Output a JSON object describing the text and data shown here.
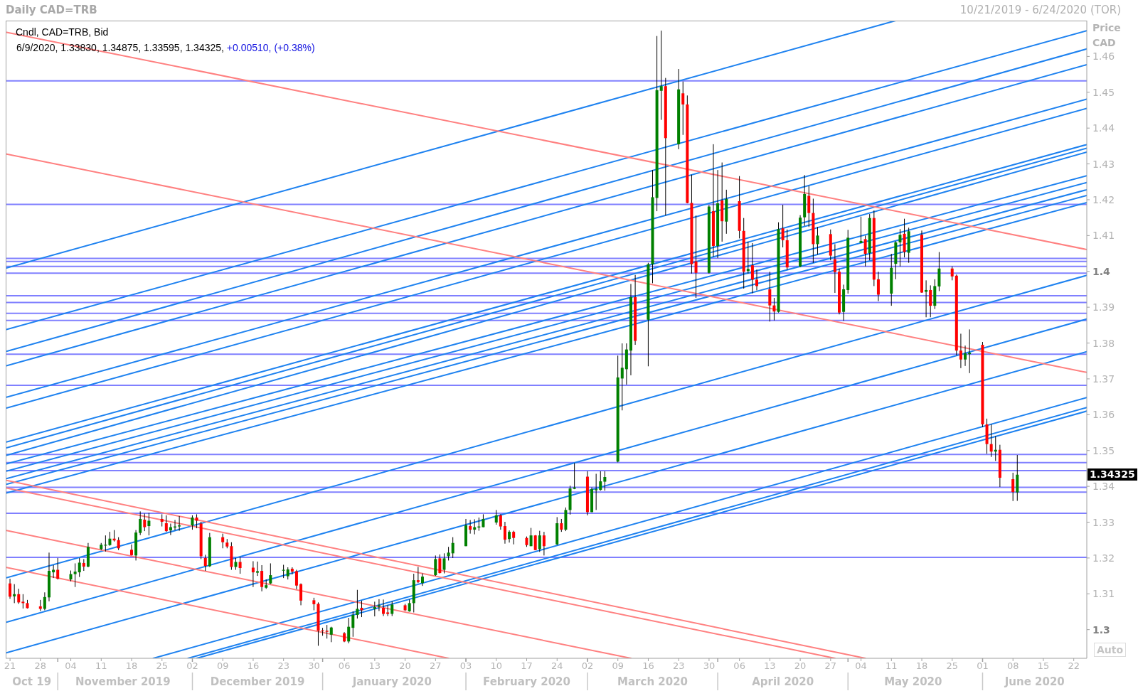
{
  "chart_data": {
    "type": "candlestick",
    "title": "Daily CAD=TRB",
    "subtitle": "10/21/2019 - 6/24/2020 (TOR)",
    "ylabel": "Price CAD",
    "annotations": [
      "Cndl, CAD=TRB, Bid",
      "6/9/2020, 1.33830, 1.34875, 1.33595, 1.34325,",
      "+0.00510, (+0.38%)",
      "1.34325",
      "Auto"
    ],
    "x": [
      "2019-10-21",
      "2019-10-22",
      "2019-10-23",
      "2019-10-24",
      "2019-10-25",
      "2019-10-28",
      "2019-10-29",
      "2019-10-30",
      "2019-10-31",
      "2019-11-01",
      "2019-11-04",
      "2019-11-05",
      "2019-11-06",
      "2019-11-07",
      "2019-11-08",
      "2019-11-11",
      "2019-11-12",
      "2019-11-13",
      "2019-11-14",
      "2019-11-15",
      "2019-11-18",
      "2019-11-19",
      "2019-11-20",
      "2019-11-21",
      "2019-11-22",
      "2019-11-25",
      "2019-11-26",
      "2019-11-27",
      "2019-11-28",
      "2019-11-29",
      "2019-12-02",
      "2019-12-03",
      "2019-12-04",
      "2019-12-05",
      "2019-12-06",
      "2019-12-09",
      "2019-12-10",
      "2019-12-11",
      "2019-12-12",
      "2019-12-13",
      "2019-12-16",
      "2019-12-17",
      "2019-12-18",
      "2019-12-19",
      "2019-12-20",
      "2019-12-23",
      "2019-12-24",
      "2019-12-25",
      "2019-12-26",
      "2019-12-27",
      "2019-12-30",
      "2019-12-31",
      "2020-01-01",
      "2020-01-02",
      "2020-01-03",
      "2020-01-06",
      "2020-01-07",
      "2020-01-08",
      "2020-01-09",
      "2020-01-10",
      "2020-01-13",
      "2020-01-14",
      "2020-01-15",
      "2020-01-16",
      "2020-01-17",
      "2020-01-20",
      "2020-01-21",
      "2020-01-22",
      "2020-01-23",
      "2020-01-24",
      "2020-01-27",
      "2020-01-28",
      "2020-01-29",
      "2020-01-30",
      "2020-01-31",
      "2020-02-03",
      "2020-02-04",
      "2020-02-05",
      "2020-02-06",
      "2020-02-07",
      "2020-02-10",
      "2020-02-11",
      "2020-02-12",
      "2020-02-13",
      "2020-02-14",
      "2020-02-17",
      "2020-02-18",
      "2020-02-19",
      "2020-02-20",
      "2020-02-21",
      "2020-02-24",
      "2020-02-25",
      "2020-02-26",
      "2020-02-27",
      "2020-02-28",
      "2020-03-02",
      "2020-03-03",
      "2020-03-04",
      "2020-03-05",
      "2020-03-06",
      "2020-03-09",
      "2020-03-10",
      "2020-03-11",
      "2020-03-12",
      "2020-03-13",
      "2020-03-16",
      "2020-03-17",
      "2020-03-18",
      "2020-03-19",
      "2020-03-20",
      "2020-03-23",
      "2020-03-24",
      "2020-03-25",
      "2020-03-26",
      "2020-03-27",
      "2020-03-30",
      "2020-03-31",
      "2020-04-01",
      "2020-04-02",
      "2020-04-03",
      "2020-04-06",
      "2020-04-07",
      "2020-04-08",
      "2020-04-09",
      "2020-04-10",
      "2020-04-13",
      "2020-04-14",
      "2020-04-15",
      "2020-04-16",
      "2020-04-17",
      "2020-04-20",
      "2020-04-21",
      "2020-04-22",
      "2020-04-23",
      "2020-04-24",
      "2020-04-27",
      "2020-04-28",
      "2020-04-29",
      "2020-04-30",
      "2020-05-01",
      "2020-05-04",
      "2020-05-05",
      "2020-05-06",
      "2020-05-07",
      "2020-05-08",
      "2020-05-11",
      "2020-05-12",
      "2020-05-13",
      "2020-05-14",
      "2020-05-15",
      "2020-05-18",
      "2020-05-19",
      "2020-05-20",
      "2020-05-21",
      "2020-05-22",
      "2020-05-25",
      "2020-05-26",
      "2020-05-27",
      "2020-05-28",
      "2020-05-29",
      "2020-06-01",
      "2020-06-02",
      "2020-06-03",
      "2020-06-04",
      "2020-06-05",
      "2020-06-08",
      "2020-06-09"
    ],
    "ohlc": [
      [
        1.3129,
        1.3142,
        1.3086,
        1.3092
      ],
      [
        1.3093,
        1.3127,
        1.3074,
        1.3099
      ],
      [
        1.3099,
        1.3114,
        1.3072,
        1.3076
      ],
      [
        1.3078,
        1.3099,
        1.3059,
        1.3074
      ],
      [
        1.3074,
        1.3083,
        1.3059,
        1.306
      ],
      [
        1.3065,
        1.3083,
        1.3052,
        1.3058
      ],
      [
        1.3058,
        1.3104,
        1.3054,
        1.3091
      ],
      [
        1.309,
        1.3215,
        1.3079,
        1.3164
      ],
      [
        1.316,
        1.318,
        1.3144,
        1.3167
      ],
      [
        1.3167,
        1.32,
        1.314,
        1.3142
      ],
      [
        1.314,
        1.3165,
        1.3135,
        1.3155
      ],
      [
        1.3155,
        1.3185,
        1.3119,
        1.3162
      ],
      [
        1.316,
        1.32,
        1.3147,
        1.3187
      ],
      [
        1.3186,
        1.3197,
        1.3164,
        1.3176
      ],
      [
        1.3176,
        1.3242,
        1.3174,
        1.3231
      ],
      [
        1.3225,
        1.3242,
        1.3222,
        1.3237
      ],
      [
        1.3236,
        1.3263,
        1.3218,
        1.3237
      ],
      [
        1.3236,
        1.3273,
        1.3234,
        1.3254
      ],
      [
        1.3254,
        1.3278,
        1.3246,
        1.3249
      ],
      [
        1.325,
        1.3258,
        1.3222,
        1.3227
      ],
      [
        1.3223,
        1.3238,
        1.3207,
        1.3208
      ],
      [
        1.3207,
        1.3278,
        1.3193,
        1.3271
      ],
      [
        1.327,
        1.333,
        1.3264,
        1.3309
      ],
      [
        1.3307,
        1.3324,
        1.3275,
        1.3286
      ],
      [
        1.3289,
        1.3326,
        1.3263,
        1.3304
      ],
      [
        1.3309,
        1.3322,
        1.3288,
        1.3301
      ],
      [
        1.3297,
        1.3319,
        1.3273,
        1.3275
      ],
      [
        1.3277,
        1.3296,
        1.3264,
        1.3286
      ],
      [
        1.3285,
        1.3306,
        1.3277,
        1.3288
      ],
      [
        1.3288,
        1.3317,
        1.3276,
        1.3291
      ],
      [
        1.3291,
        1.3319,
        1.3279,
        1.3313
      ],
      [
        1.3313,
        1.3322,
        1.3283,
        1.3304
      ],
      [
        1.3296,
        1.3301,
        1.3197,
        1.3205
      ],
      [
        1.32,
        1.3209,
        1.3164,
        1.3178
      ],
      [
        1.3177,
        1.327,
        1.3175,
        1.3258
      ],
      [
        1.3258,
        1.3268,
        1.3227,
        1.3244
      ],
      [
        1.3243,
        1.3253,
        1.3227,
        1.3232
      ],
      [
        1.3233,
        1.3244,
        1.3167,
        1.3175
      ],
      [
        1.3175,
        1.32,
        1.3167,
        1.3189
      ],
      [
        1.3189,
        1.3203,
        1.3156,
        1.3172
      ],
      [
        1.3173,
        1.3191,
        1.3119,
        1.316
      ],
      [
        1.3159,
        1.319,
        1.315,
        1.3163
      ],
      [
        1.3164,
        1.318,
        1.3107,
        1.3119
      ],
      [
        1.3117,
        1.314,
        1.3114,
        1.3124
      ],
      [
        1.3129,
        1.3185,
        1.3127,
        1.3152
      ],
      [
        1.3165,
        1.3181,
        1.3144,
        1.3167
      ],
      [
        1.3149,
        1.3174,
        1.314,
        1.3168
      ],
      [
        1.317,
        1.3174,
        1.3154,
        1.3162
      ],
      [
        1.3163,
        1.3167,
        1.3113,
        1.3123
      ],
      [
        1.3127,
        1.3129,
        1.3068,
        1.3081
      ],
      [
        1.3082,
        1.3089,
        1.3054,
        1.3071
      ],
      [
        1.3072,
        1.3076,
        1.2955,
        1.2997
      ],
      [
        1.2998,
        1.3005,
        1.2983,
        1.2996
      ],
      [
        1.2997,
        1.3013,
        1.2975,
        1.2994
      ],
      [
        1.2986,
        1.3008,
        1.2965,
        1.3006
      ],
      [
        1.299,
        1.2993,
        1.2965,
        1.2967
      ],
      [
        1.2967,
        1.3033,
        1.2962,
        1.3008
      ],
      [
        1.3005,
        1.3051,
        1.298,
        1.3041
      ],
      [
        1.3041,
        1.3111,
        1.3031,
        1.3058
      ],
      [
        1.3061,
        1.3081,
        1.3035,
        1.3054
      ],
      [
        1.3058,
        1.3078,
        1.3037,
        1.3063
      ],
      [
        1.3064,
        1.3085,
        1.3052,
        1.3068
      ],
      [
        1.3061,
        1.3084,
        1.3038,
        1.3044
      ],
      [
        1.3048,
        1.3068,
        1.3038,
        1.3044
      ],
      [
        1.3044,
        1.3079,
        1.3038,
        1.307
      ],
      [
        1.3068,
        1.3072,
        1.3052,
        1.3054
      ],
      [
        1.3051,
        1.3084,
        1.305,
        1.3074
      ],
      [
        1.3074,
        1.3156,
        1.3048,
        1.3138
      ],
      [
        1.3138,
        1.3175,
        1.313,
        1.3133
      ],
      [
        1.313,
        1.3157,
        1.3122,
        1.3148
      ],
      [
        1.3152,
        1.3207,
        1.315,
        1.3197
      ],
      [
        1.3199,
        1.321,
        1.3157,
        1.3158
      ],
      [
        1.3167,
        1.3213,
        1.3157,
        1.3199
      ],
      [
        1.3205,
        1.3231,
        1.3193,
        1.3215
      ],
      [
        1.3213,
        1.3258,
        1.32,
        1.3242
      ],
      [
        1.3233,
        1.3309,
        1.3233,
        1.3291
      ],
      [
        1.3289,
        1.3306,
        1.3268,
        1.3279
      ],
      [
        1.3279,
        1.3308,
        1.3266,
        1.3286
      ],
      [
        1.3285,
        1.3313,
        1.3276,
        1.3288
      ],
      [
        1.3286,
        1.3322,
        1.3286,
        1.3309
      ],
      [
        1.3299,
        1.3334,
        1.3293,
        1.3319
      ],
      [
        1.3319,
        1.3322,
        1.3279,
        1.3288
      ],
      [
        1.3289,
        1.3301,
        1.324,
        1.3251
      ],
      [
        1.3253,
        1.3277,
        1.3243,
        1.3273
      ],
      [
        1.3273,
        1.3276,
        1.3238,
        1.3256
      ],
      [
        1.3256,
        1.326,
        1.3231,
        1.3236
      ],
      [
        1.3233,
        1.3284,
        1.3233,
        1.3263
      ],
      [
        1.3263,
        1.3264,
        1.3222,
        1.3222
      ],
      [
        1.3225,
        1.3276,
        1.3217,
        1.3263
      ],
      [
        1.3263,
        1.3273,
        1.3207,
        1.3233
      ],
      [
        1.3238,
        1.3314,
        1.3236,
        1.3297
      ],
      [
        1.3297,
        1.3309,
        1.3273,
        1.3279
      ],
      [
        1.3279,
        1.3341,
        1.3275,
        1.3334
      ],
      [
        1.3334,
        1.3402,
        1.3321,
        1.3394
      ],
      [
        1.3393,
        1.3465,
        1.3392,
        1.3397
      ],
      [
        1.3427,
        1.3442,
        1.3319,
        1.3328
      ],
      [
        1.3328,
        1.3397,
        1.3328,
        1.3392
      ],
      [
        1.3389,
        1.3435,
        1.3334,
        1.3392
      ],
      [
        1.339,
        1.3442,
        1.3388,
        1.3414
      ],
      [
        1.3413,
        1.3442,
        1.3388,
        1.3426
      ],
      [
        1.3469,
        1.3765,
        1.3467,
        1.3704
      ],
      [
        1.3701,
        1.3799,
        1.3612,
        1.3731
      ],
      [
        1.3727,
        1.3799,
        1.3684,
        1.3782
      ],
      [
        1.3779,
        1.3965,
        1.371,
        1.3928
      ],
      [
        1.3928,
        1.399,
        1.3795,
        1.3806
      ],
      [
        1.3865,
        1.4024,
        1.3735,
        1.402
      ],
      [
        1.402,
        1.4283,
        1.3967,
        1.4207
      ],
      [
        1.4205,
        1.4657,
        1.4168,
        1.4506
      ],
      [
        1.4504,
        1.4672,
        1.4423,
        1.4517
      ],
      [
        1.4517,
        1.454,
        1.4156,
        1.4372
      ],
      [
        1.4355,
        1.4565,
        1.4341,
        1.4508
      ],
      [
        1.4497,
        1.453,
        1.4381,
        1.4466
      ],
      [
        1.4466,
        1.4491,
        1.419,
        1.4191
      ],
      [
        1.4191,
        1.427,
        1.3994,
        1.402
      ],
      [
        1.4028,
        1.4156,
        1.3926,
        1.3996
      ],
      [
        1.3996,
        1.4185,
        1.3994,
        1.4181
      ],
      [
        1.4168,
        1.4355,
        1.4041,
        1.4071
      ],
      [
        1.4071,
        1.4283,
        1.4037,
        1.419
      ],
      [
        1.4198,
        1.4304,
        1.4083,
        1.414
      ],
      [
        1.4139,
        1.4228,
        1.4105,
        1.4202
      ],
      [
        1.4196,
        1.4266,
        1.4092,
        1.4113
      ],
      [
        1.4113,
        1.4149,
        1.3952,
        1.3999
      ],
      [
        1.4001,
        1.4083,
        1.3994,
        1.4007
      ],
      [
        1.4017,
        1.4079,
        1.3939,
        1.3977
      ],
      [
        1.3977,
        1.4005,
        1.3947,
        1.3959
      ],
      [
        1.395,
        1.3999,
        1.386,
        1.3905
      ],
      [
        1.3905,
        1.3926,
        1.3863,
        1.3888
      ],
      [
        1.3887,
        1.4137,
        1.3885,
        1.4118
      ],
      [
        1.412,
        1.4186,
        1.4067,
        1.4087
      ],
      [
        1.4087,
        1.4117,
        1.4004,
        1.4011
      ],
      [
        1.4014,
        1.4157,
        1.4012,
        1.415
      ],
      [
        1.4151,
        1.4269,
        1.4127,
        1.4216
      ],
      [
        1.4211,
        1.4239,
        1.4124,
        1.4163
      ],
      [
        1.4163,
        1.4203,
        1.4024,
        1.4076
      ],
      [
        1.4076,
        1.4124,
        1.4047,
        1.41
      ],
      [
        1.4104,
        1.4117,
        1.4031,
        1.4044
      ],
      [
        1.4034,
        1.4076,
        1.394,
        1.3998
      ],
      [
        1.3999,
        1.4008,
        1.388,
        1.3885
      ],
      [
        1.3887,
        1.3963,
        1.3862,
        1.395
      ],
      [
        1.3948,
        1.4116,
        1.3938,
        1.4094
      ],
      [
        1.4079,
        1.4153,
        1.4079,
        1.4085
      ],
      [
        1.409,
        1.41,
        1.4014,
        1.4049
      ],
      [
        1.4051,
        1.416,
        1.4031,
        1.4149
      ],
      [
        1.4149,
        1.417,
        1.3959,
        1.3977
      ],
      [
        1.3978,
        1.3999,
        1.3917,
        1.3935
      ],
      [
        1.3938,
        1.4049,
        1.3904,
        1.401
      ],
      [
        1.4021,
        1.4084,
        1.3978,
        1.4081
      ],
      [
        1.4081,
        1.4118,
        1.4014,
        1.4102
      ],
      [
        1.4105,
        1.4147,
        1.4039,
        1.4054
      ],
      [
        1.4052,
        1.4122,
        1.4024,
        1.4112
      ],
      [
        1.4102,
        1.4114,
        1.394,
        1.3941
      ],
      [
        1.3943,
        1.3975,
        1.3872,
        1.3948
      ],
      [
        1.3948,
        1.3961,
        1.3872,
        1.3904
      ],
      [
        1.3904,
        1.3978,
        1.3895,
        1.3959
      ],
      [
        1.3958,
        1.4054,
        1.3945,
        1.4008
      ],
      [
        1.4008,
        1.4014,
        1.3975,
        1.3986
      ],
      [
        1.3988,
        1.3991,
        1.3766,
        1.3779
      ],
      [
        1.3779,
        1.3826,
        1.373,
        1.3754
      ],
      [
        1.3754,
        1.3793,
        1.3736,
        1.3771
      ],
      [
        1.3769,
        1.3838,
        1.3716,
        1.3773
      ],
      [
        1.3795,
        1.3803,
        1.3565,
        1.3573
      ],
      [
        1.3573,
        1.3589,
        1.3491,
        1.3518
      ],
      [
        1.3518,
        1.3573,
        1.3482,
        1.3497
      ],
      [
        1.3497,
        1.354,
        1.3471,
        1.3502
      ],
      [
        1.3502,
        1.3516,
        1.3398,
        1.3424
      ],
      [
        1.342,
        1.3438,
        1.3359,
        1.3384
      ],
      [
        1.3383,
        1.34875,
        1.33595,
        1.34325
      ]
    ],
    "series": [
      {
        "type": "line",
        "x": [
          "2019-10-20",
          "2020-05-12"
        ],
        "values": [
          1.4009,
          1.47
        ],
        "color": "#1e82f0"
      },
      {
        "type": "line",
        "x": [
          "2019-10-20",
          "2020-06-25"
        ],
        "values": [
          1.3837,
          1.4672
        ],
        "color": "#1e82f0"
      },
      {
        "type": "line",
        "x": [
          "2019-10-20",
          "2020-06-25"
        ],
        "values": [
          1.3776,
          1.4621
        ],
        "color": "#1e82f0"
      },
      {
        "type": "line",
        "x": [
          "2019-10-20",
          "2020-06-25"
        ],
        "values": [
          1.3736,
          1.4577
        ],
        "color": "#1e82f0"
      },
      {
        "type": "line",
        "x": [
          "2019-10-20",
          "2020-06-25"
        ],
        "values": [
          1.3648,
          1.4481
        ],
        "color": "#1e82f0"
      },
      {
        "type": "line",
        "x": [
          "2019-10-20",
          "2020-06-25"
        ],
        "values": [
          1.3618,
          1.4455
        ],
        "color": "#1e82f0"
      },
      {
        "type": "line",
        "x": [
          "2019-10-20",
          "2020-06-25"
        ],
        "values": [
          1.3523,
          1.4354
        ],
        "color": "#1e82f0"
      },
      {
        "type": "line",
        "x": [
          "2019-10-20",
          "2020-06-25"
        ],
        "values": [
          1.3507,
          1.4344
        ],
        "color": "#1e82f0"
      },
      {
        "type": "line",
        "x": [
          "2019-10-20",
          "2020-06-25"
        ],
        "values": [
          1.3486,
          1.4333
        ],
        "color": "#1e82f0"
      },
      {
        "type": "line",
        "x": [
          "2019-10-20",
          "2020-06-25"
        ],
        "values": [
          1.3462,
          1.4267
        ],
        "color": "#1e82f0"
      },
      {
        "type": "line",
        "x": [
          "2019-10-20",
          "2020-06-25"
        ],
        "values": [
          1.3442,
          1.4248
        ],
        "color": "#1e82f0"
      },
      {
        "type": "line",
        "x": [
          "2019-10-20",
          "2020-06-25"
        ],
        "values": [
          1.3421,
          1.4228
        ],
        "color": "#1e82f0"
      },
      {
        "type": "line",
        "x": [
          "2019-10-20",
          "2020-06-25"
        ],
        "values": [
          1.3405,
          1.4212
        ],
        "color": "#1e82f0"
      },
      {
        "type": "line",
        "x": [
          "2019-10-20",
          "2020-06-25"
        ],
        "values": [
          1.3381,
          1.4192
        ],
        "color": "#1e82f0"
      },
      {
        "type": "line",
        "x": [
          "2019-10-20",
          "2020-06-25"
        ],
        "values": [
          1.3144,
          1.3989
        ],
        "color": "#1e82f0"
      },
      {
        "type": "line",
        "x": [
          "2019-10-20",
          "2020-06-25"
        ],
        "values": [
          1.302,
          1.3867
        ],
        "color": "#1e82f0"
      },
      {
        "type": "line",
        "x": [
          "2019-10-20",
          "2020-06-25"
        ],
        "values": [
          1.2935,
          1.3776
        ],
        "color": "#1e82f0"
      },
      {
        "type": "line",
        "x": [
          "2019-11-23",
          "2020-06-25"
        ],
        "values": [
          1.292,
          1.3648
        ],
        "color": "#1e82f0"
      },
      {
        "type": "line",
        "x": [
          "2019-12-01",
          "2020-06-25"
        ],
        "values": [
          1.292,
          1.362
        ],
        "color": "#1e82f0"
      },
      {
        "type": "line",
        "x": [
          "2019-12-03",
          "2020-06-25"
        ],
        "values": [
          1.292,
          1.361
        ],
        "color": "#1e82f0"
      },
      {
        "type": "line",
        "x": [
          "2019-10-20",
          "2020-06-25"
        ],
        "values": [
          1.4668,
          1.4061
        ],
        "color": "#ff8080"
      },
      {
        "type": "line",
        "x": [
          "2019-10-20",
          "2020-06-25"
        ],
        "values": [
          1.4328,
          1.3718
        ],
        "color": "#ff8080"
      },
      {
        "type": "line",
        "x": [
          "2019-10-20",
          "2020-05-05"
        ],
        "values": [
          1.3417,
          1.292
        ],
        "color": "#ff8080"
      },
      {
        "type": "line",
        "x": [
          "2019-10-20",
          "2020-04-28"
        ],
        "values": [
          1.3396,
          1.292
        ],
        "color": "#ff8080"
      },
      {
        "type": "line",
        "x": [
          "2019-10-20",
          "2020-03-12"
        ],
        "values": [
          1.3277,
          1.292
        ],
        "color": "#ff8080"
      },
      {
        "type": "line",
        "x": [
          "2019-10-20",
          "2020-01-30"
        ],
        "values": [
          1.3174,
          1.292
        ],
        "color": "#ff8080"
      }
    ],
    "ref_lines": [
      {
        "axis": "y",
        "value": 1.4532,
        "color": "#8080ff"
      },
      {
        "axis": "y",
        "value": 1.4187,
        "color": "#8080ff"
      },
      {
        "axis": "y",
        "value": 1.4036,
        "color": "#8080ff"
      },
      {
        "axis": "y",
        "value": 1.4028,
        "color": "#8080ff"
      },
      {
        "axis": "y",
        "value": 1.4014,
        "color": "#8080ff"
      },
      {
        "axis": "y",
        "value": 1.3995,
        "color": "#8080ff"
      },
      {
        "axis": "y",
        "value": 1.3932,
        "color": "#8080ff"
      },
      {
        "axis": "y",
        "value": 1.3913,
        "color": "#8080ff"
      },
      {
        "axis": "y",
        "value": 1.3883,
        "color": "#8080ff"
      },
      {
        "axis": "y",
        "value": 1.3863,
        "color": "#8080ff"
      },
      {
        "axis": "y",
        "value": 1.3769,
        "color": "#8080ff"
      },
      {
        "axis": "y",
        "value": 1.3682,
        "color": "#8080ff"
      },
      {
        "axis": "y",
        "value": 1.3489,
        "color": "#8080ff"
      },
      {
        "axis": "y",
        "value": 1.3466,
        "color": "#8080ff"
      },
      {
        "axis": "y",
        "value": 1.3444,
        "color": "#8080ff"
      },
      {
        "axis": "y",
        "value": 1.3397,
        "color": "#8080ff"
      },
      {
        "axis": "y",
        "value": 1.3384,
        "color": "#8080ff"
      },
      {
        "axis": "y",
        "value": 1.3325,
        "color": "#8080ff"
      },
      {
        "axis": "y",
        "value": 1.3202,
        "color": "#8080ff"
      }
    ],
    "xlim": [
      "2019-10-20",
      "2020-06-25"
    ],
    "xticks": [
      {
        "value": "2019-10-21",
        "label": "21"
      },
      {
        "value": "2019-10-28",
        "label": "28"
      },
      {
        "value": "2019-11-04",
        "label": "04"
      },
      {
        "value": "2019-11-11",
        "label": "11"
      },
      {
        "value": "2019-11-18",
        "label": "18"
      },
      {
        "value": "2019-11-25",
        "label": "25"
      },
      {
        "value": "2019-12-02",
        "label": "02"
      },
      {
        "value": "2019-12-09",
        "label": "09"
      },
      {
        "value": "2019-12-16",
        "label": "16"
      },
      {
        "value": "2019-12-23",
        "label": "23"
      },
      {
        "value": "2019-12-30",
        "label": "30"
      },
      {
        "value": "2020-01-06",
        "label": "06"
      },
      {
        "value": "2020-01-13",
        "label": "13"
      },
      {
        "value": "2020-01-20",
        "label": "20"
      },
      {
        "value": "2020-01-27",
        "label": "27"
      },
      {
        "value": "2020-02-03",
        "label": "03"
      },
      {
        "value": "2020-02-10",
        "label": "10"
      },
      {
        "value": "2020-02-17",
        "label": "17"
      },
      {
        "value": "2020-02-24",
        "label": "24"
      },
      {
        "value": "2020-03-02",
        "label": "02"
      },
      {
        "value": "2020-03-09",
        "label": "09"
      },
      {
        "value": "2020-03-16",
        "label": "16"
      },
      {
        "value": "2020-03-23",
        "label": "23"
      },
      {
        "value": "2020-03-30",
        "label": "30"
      },
      {
        "value": "2020-04-06",
        "label": "06"
      },
      {
        "value": "2020-04-13",
        "label": "13"
      },
      {
        "value": "2020-04-20",
        "label": "20"
      },
      {
        "value": "2020-04-27",
        "label": "27"
      },
      {
        "value": "2020-05-04",
        "label": "04"
      },
      {
        "value": "2020-05-11",
        "label": "11"
      },
      {
        "value": "2020-05-18",
        "label": "18"
      },
      {
        "value": "2020-05-25",
        "label": "25"
      },
      {
        "value": "2020-06-01",
        "label": "01"
      },
      {
        "value": "2020-06-08",
        "label": "08"
      },
      {
        "value": "2020-06-15",
        "label": "15"
      },
      {
        "value": "2020-06-22",
        "label": "22"
      }
    ],
    "x2lim": [
      "2019-10-20",
      "2020-06-25"
    ],
    "x2ticks": [
      {
        "value": "2019-10-26",
        "label": "Oct 19"
      },
      {
        "value": "2019-11-01",
        "label": null
      },
      {
        "value": "2019-11-16",
        "label": "November 2019"
      },
      {
        "value": "2019-12-02",
        "label": null
      },
      {
        "value": "2019-12-17",
        "label": "December 2019"
      },
      {
        "value": "2020-01-01",
        "label": null
      },
      {
        "value": "2020-01-17",
        "label": "January 2020"
      },
      {
        "value": "2020-02-03",
        "label": null
      },
      {
        "value": "2020-02-17",
        "label": "February 2020"
      },
      {
        "value": "2020-03-02",
        "label": null
      },
      {
        "value": "2020-03-17",
        "label": "March 2020"
      },
      {
        "value": "2020-04-01",
        "label": null
      },
      {
        "value": "2020-04-16",
        "label": "April 2020"
      },
      {
        "value": "2020-05-01",
        "label": null
      },
      {
        "value": "2020-05-16",
        "label": "May 2020"
      },
      {
        "value": "2020-06-01",
        "label": null
      },
      {
        "value": "2020-06-13",
        "label": "June 2020"
      }
    ],
    "ylim": [
      1.292,
      1.47
    ],
    "yticks": [
      1.3,
      1.31,
      1.32,
      1.33,
      1.34,
      1.35,
      1.36,
      1.37,
      1.38,
      1.39,
      1.4,
      1.41,
      1.42,
      1.43,
      1.44,
      1.45,
      1.46
    ]
  }
}
